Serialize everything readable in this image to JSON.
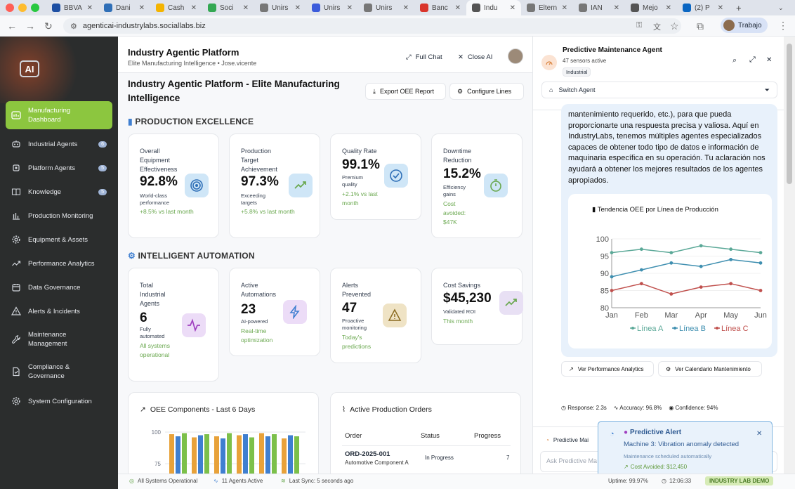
{
  "browser": {
    "tabs": [
      {
        "label": "BBVA"
      },
      {
        "label": "Dani"
      },
      {
        "label": "Cash"
      },
      {
        "label": "Soci"
      },
      {
        "label": "Unirs"
      },
      {
        "label": "Unirs"
      },
      {
        "label": "Unirs"
      },
      {
        "label": "Banc"
      },
      {
        "label": "Indu"
      },
      {
        "label": "Eltern"
      },
      {
        "label": "IAN"
      },
      {
        "label": "Mejo"
      },
      {
        "label": "(2) P"
      }
    ],
    "url": "agenticai-industrylabs.sociallabs.biz",
    "profile": "Trabajo"
  },
  "sidebar": {
    "logo": "AI",
    "items": [
      {
        "label": "Manufacturing Dashboard",
        "icon": "dashboard-icon"
      },
      {
        "label": "Industrial Agents",
        "badge": "6",
        "icon": "robot-icon"
      },
      {
        "label": "Platform Agents",
        "badge": "5",
        "icon": "cpu-icon"
      },
      {
        "label": "Knowledge",
        "badge": "5",
        "icon": "book-icon"
      },
      {
        "label": "Production Monitoring",
        "icon": "bar-chart-icon"
      },
      {
        "label": "Equipment & Assets",
        "icon": "gear-icon"
      },
      {
        "label": "Performance Analytics",
        "icon": "trend-icon"
      },
      {
        "label": "Data Governance",
        "icon": "calendar-icon"
      },
      {
        "label": "Alerts & Incidents",
        "icon": "warning-icon"
      },
      {
        "label": "Maintenance Management",
        "icon": "wrench-icon"
      },
      {
        "label": "Compliance & Governance",
        "icon": "document-icon"
      },
      {
        "label": "System Configuration",
        "icon": "settings-icon"
      }
    ]
  },
  "header": {
    "title": "Industry Agentic Platform",
    "subtitle": "Elite Manufacturing Intelligence • Jose.vicente",
    "full_chat": "Full Chat",
    "close_ai": "Close AI"
  },
  "page": {
    "title": "Industry Agentic Platform - Elite Manufacturing Intelligence",
    "export_button": "Export OEE Report",
    "configure_button": "Configure Lines",
    "section1": "PRODUCTION EXCELLENCE",
    "section2": "INTELLIGENT AUTOMATION",
    "kpis": [
      {
        "label": "Overall Equipment Effectiveness",
        "value": "92.8%",
        "sub": "World-class performance",
        "delta": "+8.5% vs last month"
      },
      {
        "label": "Production Target Achievement",
        "value": "97.3%",
        "sub": "Exceeding targets",
        "delta": "+5.8% vs last month"
      },
      {
        "label": "Quality Rate",
        "value": "99.1%",
        "sub": "Premium quality",
        "delta": "+2.1% vs last month"
      },
      {
        "label": "Downtime Reduction",
        "value": "15.2%",
        "sub": "Efficiency gains",
        "delta": "Cost avoided: $47K"
      }
    ],
    "automation": [
      {
        "label": "Total Industrial Agents",
        "value": "6",
        "sub": "Fully automated",
        "delta": "All systems operational"
      },
      {
        "label": "Active Automations",
        "value": "23",
        "sub": "AI-powered",
        "delta": "Real-time optimization"
      },
      {
        "label": "Alerts Prevented",
        "value": "47",
        "sub": "Proactive monitoring",
        "delta": "Today's predictions"
      },
      {
        "label": "Cost Savings",
        "value": "$45,230",
        "sub": "Validated ROI",
        "delta": "This month"
      }
    ],
    "oee_components": {
      "title": "OEE Components - Last 6 Days",
      "y_ticks": [
        "100",
        "75"
      ]
    },
    "orders": {
      "title": "Active Production Orders",
      "columns": [
        "Order",
        "Status",
        "Progress"
      ],
      "rows": [
        {
          "order": "ORD-2025-001",
          "product": "Automotive Component A",
          "status": "In Progress",
          "progress": "7"
        }
      ]
    }
  },
  "agent": {
    "name": "Predictive Maintenance Agent",
    "sensors": "47 sensors active",
    "tag": "Industrial",
    "switch_label": "Switch Agent",
    "message": "mantenimiento requerido, etc.), para que pueda proporcionarte una respuesta precisa y valiosa. Aquí en IndustryLabs, tenemos múltiples agentes especializados capaces de obtener todo tipo de datos e información de maquinaria específica en su operación. Tu aclaración nos ayudará a obtener los mejores resultados de los agentes apropiados.",
    "btn_analytics": "Ver Performance Analytics",
    "btn_calendar": "Ver Calendario Mantenimiento",
    "response": "Response: 2.3s",
    "accuracy": "Accuracy: 96.8%",
    "confidence": "Confidence: 94%",
    "input_agent_label": "Predictive Mai",
    "input_placeholder": "Ask Predictive Ma"
  },
  "chart_data": {
    "type": "line",
    "title": "Tendencia OEE por Línea de Producción",
    "categories": [
      "Jan",
      "Feb",
      "Mar",
      "Apr",
      "May",
      "Jun"
    ],
    "ylim": [
      80,
      100
    ],
    "y_ticks": [
      80,
      85,
      90,
      95,
      100
    ],
    "series": [
      {
        "name": "Línea A",
        "color": "#5aa897",
        "values": [
          96,
          97,
          96,
          98,
          97,
          96
        ]
      },
      {
        "name": "Línea B",
        "color": "#3f8fb0",
        "values": [
          89,
          91,
          93,
          92,
          94,
          93
        ]
      },
      {
        "name": "Línea C",
        "color": "#c0504d",
        "values": [
          85,
          87,
          84,
          86,
          87,
          85
        ]
      }
    ]
  },
  "oee_bars": {
    "type": "bar",
    "ylim": [
      70,
      100
    ],
    "series_colors": [
      "#e8a23a",
      "#3f7fd0",
      "#7cc04a"
    ],
    "groups": [
      [
        98,
        96,
        99
      ],
      [
        95,
        97,
        98
      ],
      [
        96,
        94,
        99
      ],
      [
        97,
        98,
        95
      ],
      [
        99,
        96,
        98
      ],
      [
        94,
        97,
        96
      ]
    ]
  },
  "toast": {
    "title": "Predictive Alert",
    "message": "Machine 3: Vibration anomaly detected",
    "sub": "Maintenance scheduled automatically",
    "cost": "Cost Avoided: $12,450"
  },
  "statusbar": {
    "systems": "All Systems Operational",
    "agents": "11 Agents Active",
    "sync": "Last Sync: 5 seconds ago",
    "uptime": "Uptime: 99.97%",
    "time": "12:06:33",
    "demo": "INDUSTRY LAB DEMO"
  }
}
